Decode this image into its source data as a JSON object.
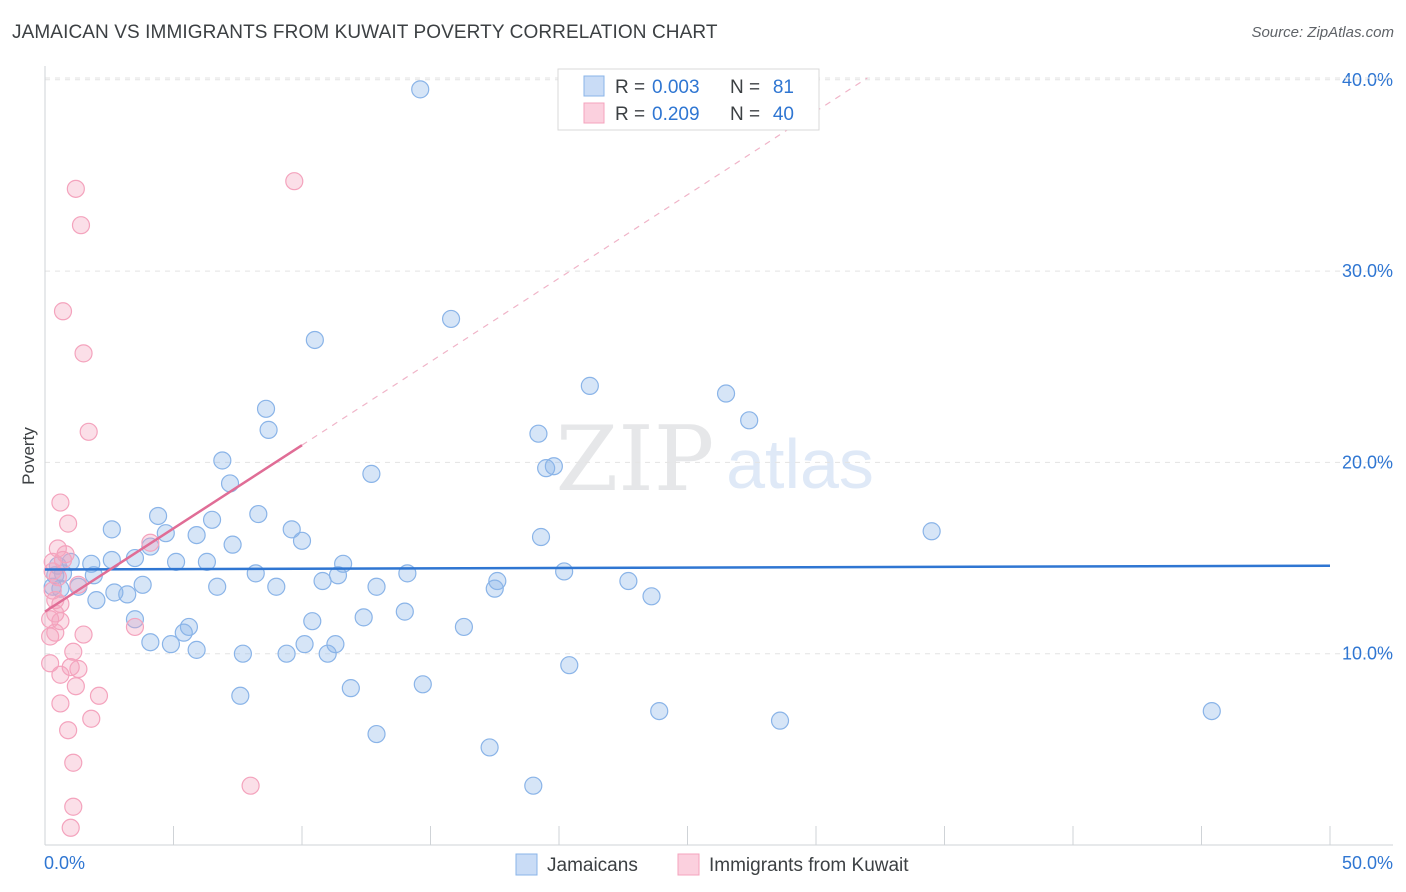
{
  "header": {
    "title": "JAMAICAN VS IMMIGRANTS FROM KUWAIT POVERTY CORRELATION CHART",
    "source": "Source: ZipAtlas.com"
  },
  "watermark": {
    "zip": "ZIP",
    "atlas": "atlas"
  },
  "chart_data": {
    "type": "scatter",
    "title": "JAMAICAN VS IMMIGRANTS FROM KUWAIT POVERTY CORRELATION CHART",
    "xlabel": "",
    "ylabel": "Poverty",
    "xlim": [
      0,
      50
    ],
    "ylim": [
      0,
      40
    ],
    "x_tick_labels": [
      "0.0%",
      "50.0%"
    ],
    "y_ticks": [
      10,
      20,
      30,
      40
    ],
    "y_tick_labels": [
      "10.0%",
      "20.0%",
      "30.0%",
      "40.0%"
    ],
    "grid": true,
    "legend_position": "top-center",
    "bottom_legend": [
      "Jamaicans",
      "Immigrants from Kuwait"
    ],
    "series": [
      {
        "name": "Jamaicans",
        "color": "#8ab4e8",
        "line_color": "#2f76d2",
        "R": "0.003",
        "N": "81",
        "trend": {
          "x": [
            0,
            50
          ],
          "y": [
            14.4,
            14.6
          ]
        },
        "points": [
          [
            14.6,
            39.5
          ],
          [
            15.8,
            27.5
          ],
          [
            10.5,
            26.4
          ],
          [
            21.2,
            24.0
          ],
          [
            26.5,
            23.6
          ],
          [
            8.6,
            22.8
          ],
          [
            27.4,
            22.2
          ],
          [
            8.7,
            21.7
          ],
          [
            19.2,
            21.5
          ],
          [
            12.7,
            19.4
          ],
          [
            19.5,
            19.7
          ],
          [
            19.8,
            19.8
          ],
          [
            6.9,
            20.1
          ],
          [
            7.2,
            18.9
          ],
          [
            34.5,
            16.4
          ],
          [
            8.3,
            17.3
          ],
          [
            4.4,
            17.2
          ],
          [
            6.5,
            17.0
          ],
          [
            2.6,
            16.5
          ],
          [
            9.6,
            16.5
          ],
          [
            4.7,
            16.3
          ],
          [
            5.9,
            16.2
          ],
          [
            19.3,
            16.1
          ],
          [
            10.0,
            15.9
          ],
          [
            7.3,
            15.7
          ],
          [
            4.1,
            15.6
          ],
          [
            1.0,
            14.8
          ],
          [
            1.8,
            14.7
          ],
          [
            2.6,
            14.9
          ],
          [
            3.5,
            15.0
          ],
          [
            5.1,
            14.8
          ],
          [
            6.3,
            14.8
          ],
          [
            11.6,
            14.7
          ],
          [
            1.9,
            14.1
          ],
          [
            0.5,
            14.6
          ],
          [
            0.7,
            14.2
          ],
          [
            8.2,
            14.2
          ],
          [
            11.4,
            14.1
          ],
          [
            14.1,
            14.2
          ],
          [
            20.2,
            14.3
          ],
          [
            0.3,
            13.5
          ],
          [
            0.6,
            13.4
          ],
          [
            1.3,
            13.5
          ],
          [
            3.8,
            13.6
          ],
          [
            6.7,
            13.5
          ],
          [
            9.0,
            13.5
          ],
          [
            10.8,
            13.8
          ],
          [
            12.9,
            13.5
          ],
          [
            17.6,
            13.8
          ],
          [
            17.5,
            13.4
          ],
          [
            22.7,
            13.8
          ],
          [
            2.0,
            12.8
          ],
          [
            2.7,
            13.2
          ],
          [
            3.2,
            13.1
          ],
          [
            23.6,
            13.0
          ],
          [
            14.0,
            12.2
          ],
          [
            12.4,
            11.9
          ],
          [
            10.4,
            11.7
          ],
          [
            3.5,
            11.8
          ],
          [
            5.6,
            11.4
          ],
          [
            16.3,
            11.4
          ],
          [
            5.4,
            11.1
          ],
          [
            4.1,
            10.6
          ],
          [
            4.9,
            10.5
          ],
          [
            5.9,
            10.2
          ],
          [
            10.1,
            10.5
          ],
          [
            11.3,
            10.5
          ],
          [
            7.7,
            10.0
          ],
          [
            9.4,
            10.0
          ],
          [
            11.0,
            10.0
          ],
          [
            20.4,
            9.4
          ],
          [
            11.9,
            8.2
          ],
          [
            14.7,
            8.4
          ],
          [
            7.6,
            7.8
          ],
          [
            23.9,
            7.0
          ],
          [
            28.6,
            6.5
          ],
          [
            45.4,
            7.0
          ],
          [
            12.9,
            5.8
          ],
          [
            17.3,
            5.1
          ],
          [
            19.0,
            3.1
          ],
          [
            0.4,
            14.1
          ]
        ]
      },
      {
        "name": "Immigrants from Kuwait",
        "color": "#f4a3bd",
        "line_color": "#e06d96",
        "R": "0.209",
        "N": "40",
        "trend": {
          "x": [
            0,
            10.0
          ],
          "y": [
            12.2,
            20.9
          ]
        },
        "trend_extension": {
          "x": [
            10.0,
            32.0
          ],
          "y": [
            20.9,
            40.1
          ]
        },
        "points": [
          [
            1.2,
            34.3
          ],
          [
            9.7,
            34.7
          ],
          [
            1.4,
            32.4
          ],
          [
            0.7,
            27.9
          ],
          [
            1.5,
            25.7
          ],
          [
            1.7,
            21.6
          ],
          [
            0.6,
            17.9
          ],
          [
            0.9,
            16.8
          ],
          [
            4.1,
            15.8
          ],
          [
            0.5,
            15.5
          ],
          [
            0.3,
            14.8
          ],
          [
            0.7,
            14.9
          ],
          [
            0.8,
            15.2
          ],
          [
            0.3,
            14.3
          ],
          [
            0.5,
            14.0
          ],
          [
            1.3,
            13.6
          ],
          [
            0.3,
            13.3
          ],
          [
            0.4,
            12.8
          ],
          [
            0.6,
            12.6
          ],
          [
            0.4,
            12.1
          ],
          [
            0.2,
            11.8
          ],
          [
            0.6,
            11.7
          ],
          [
            0.4,
            11.1
          ],
          [
            0.2,
            10.9
          ],
          [
            3.5,
            11.4
          ],
          [
            1.5,
            11.0
          ],
          [
            1.1,
            10.1
          ],
          [
            0.2,
            9.5
          ],
          [
            1.3,
            9.2
          ],
          [
            1.0,
            9.3
          ],
          [
            0.6,
            8.9
          ],
          [
            1.2,
            8.3
          ],
          [
            2.1,
            7.8
          ],
          [
            0.6,
            7.4
          ],
          [
            1.8,
            6.6
          ],
          [
            0.9,
            6.0
          ],
          [
            1.1,
            4.3
          ],
          [
            8.0,
            3.1
          ],
          [
            1.1,
            2.0
          ],
          [
            1.0,
            0.9
          ]
        ]
      }
    ]
  }
}
